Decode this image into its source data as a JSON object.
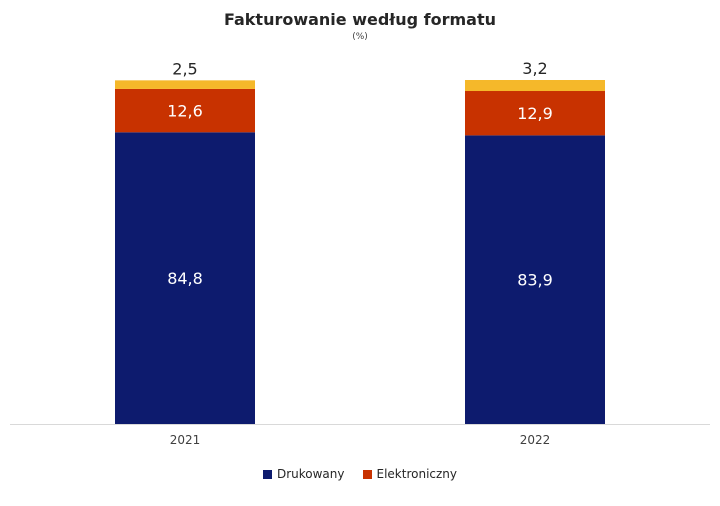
{
  "chart_data": {
    "type": "bar",
    "stacked": true,
    "title": "Fakturowanie według formatu",
    "subtitle": "(%)",
    "categories": [
      "2021",
      "2022"
    ],
    "ylim": [
      0,
      100
    ],
    "grid": false,
    "legend_position": "bottom",
    "series": [
      {
        "name": "Drukowany",
        "values": [
          84.8,
          83.9
        ],
        "labels": [
          "84,8",
          "83,9"
        ],
        "color": "#0d1b6e"
      },
      {
        "name": "Elektroniczny",
        "values": [
          12.6,
          12.9
        ],
        "labels": [
          "12,6",
          "12,9"
        ],
        "color": "#c83200"
      },
      {
        "name": "",
        "values": [
          2.5,
          3.2
        ],
        "labels": [
          "2,5",
          "3,2"
        ],
        "color": "#f5b82a"
      }
    ]
  }
}
